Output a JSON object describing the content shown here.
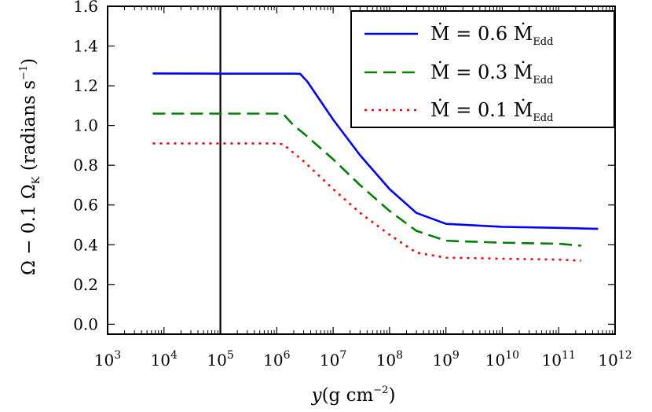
{
  "chart_data": {
    "type": "line",
    "x_scale": "log",
    "xlim": [
      1000,
      1000000000000
    ],
    "ylim": [
      -0.05,
      1.6
    ],
    "xlabel": {
      "var": "y",
      "unit": "(g cm",
      "exp": "−2",
      "close": ")"
    },
    "ylabel": {
      "text": "Ω − 0.1 Ω",
      "sub": "K",
      "unit": " (radians s",
      "exp": "−1",
      "close": ")"
    },
    "x_ticks": [
      {
        "base": "10",
        "exp": "3"
      },
      {
        "base": "10",
        "exp": "4"
      },
      {
        "base": "10",
        "exp": "5"
      },
      {
        "base": "10",
        "exp": "6"
      },
      {
        "base": "10",
        "exp": "7"
      },
      {
        "base": "10",
        "exp": "8"
      },
      {
        "base": "10",
        "exp": "9"
      },
      {
        "base": "10",
        "exp": "10"
      },
      {
        "base": "10",
        "exp": "11"
      },
      {
        "base": "10",
        "exp": "12"
      }
    ],
    "y_ticks": [
      "0.0",
      "0.2",
      "0.4",
      "0.6",
      "0.8",
      "1.0",
      "1.2",
      "1.4",
      "1.6"
    ],
    "y_tick_values": [
      0.0,
      0.2,
      0.4,
      0.6,
      0.8,
      1.0,
      1.2,
      1.4,
      1.6
    ],
    "vertical_line_x": 100000,
    "legend_position": "top-right",
    "series": [
      {
        "name": "Ṁ = 0.6 Ṁ",
        "name_sub": "Edd",
        "color": "#0000ff",
        "style": "solid",
        "points": [
          [
            6300,
            1.262
          ],
          [
            100000,
            1.261
          ],
          [
            2000000,
            1.261
          ],
          [
            2600000,
            1.26
          ],
          [
            3500000,
            1.22
          ],
          [
            10000000,
            1.03
          ],
          [
            30000000,
            0.85
          ],
          [
            100000000,
            0.68
          ],
          [
            300000000,
            0.56
          ],
          [
            1000000000,
            0.505
          ],
          [
            10000000000,
            0.49
          ],
          [
            100000000000,
            0.485
          ],
          [
            500000000000,
            0.48
          ]
        ]
      },
      {
        "name": "Ṁ = 0.3 Ṁ",
        "name_sub": "Edd",
        "color": "#008000",
        "style": "dashed",
        "points": [
          [
            6300,
            1.06
          ],
          [
            100000,
            1.06
          ],
          [
            1000000,
            1.06
          ],
          [
            1300000,
            1.058
          ],
          [
            2000000,
            1.0
          ],
          [
            3000000,
            0.96
          ],
          [
            10000000,
            0.83
          ],
          [
            30000000,
            0.7
          ],
          [
            100000000,
            0.57
          ],
          [
            300000000,
            0.47
          ],
          [
            1000000000,
            0.42
          ],
          [
            10000000000,
            0.41
          ],
          [
            100000000000,
            0.405
          ],
          [
            250000000000,
            0.395
          ]
        ]
      },
      {
        "name": "Ṁ = 0.1 Ṁ",
        "name_sub": "Edd",
        "color": "#ff0000",
        "style": "dotted",
        "points": [
          [
            6300,
            0.91
          ],
          [
            100000,
            0.91
          ],
          [
            1000000,
            0.91
          ],
          [
            1300000,
            0.905
          ],
          [
            3000000,
            0.82
          ],
          [
            10000000,
            0.68
          ],
          [
            30000000,
            0.56
          ],
          [
            100000000,
            0.45
          ],
          [
            300000000,
            0.36
          ],
          [
            1000000000,
            0.335
          ],
          [
            10000000000,
            0.33
          ],
          [
            100000000000,
            0.325
          ],
          [
            250000000000,
            0.32
          ]
        ]
      }
    ]
  }
}
